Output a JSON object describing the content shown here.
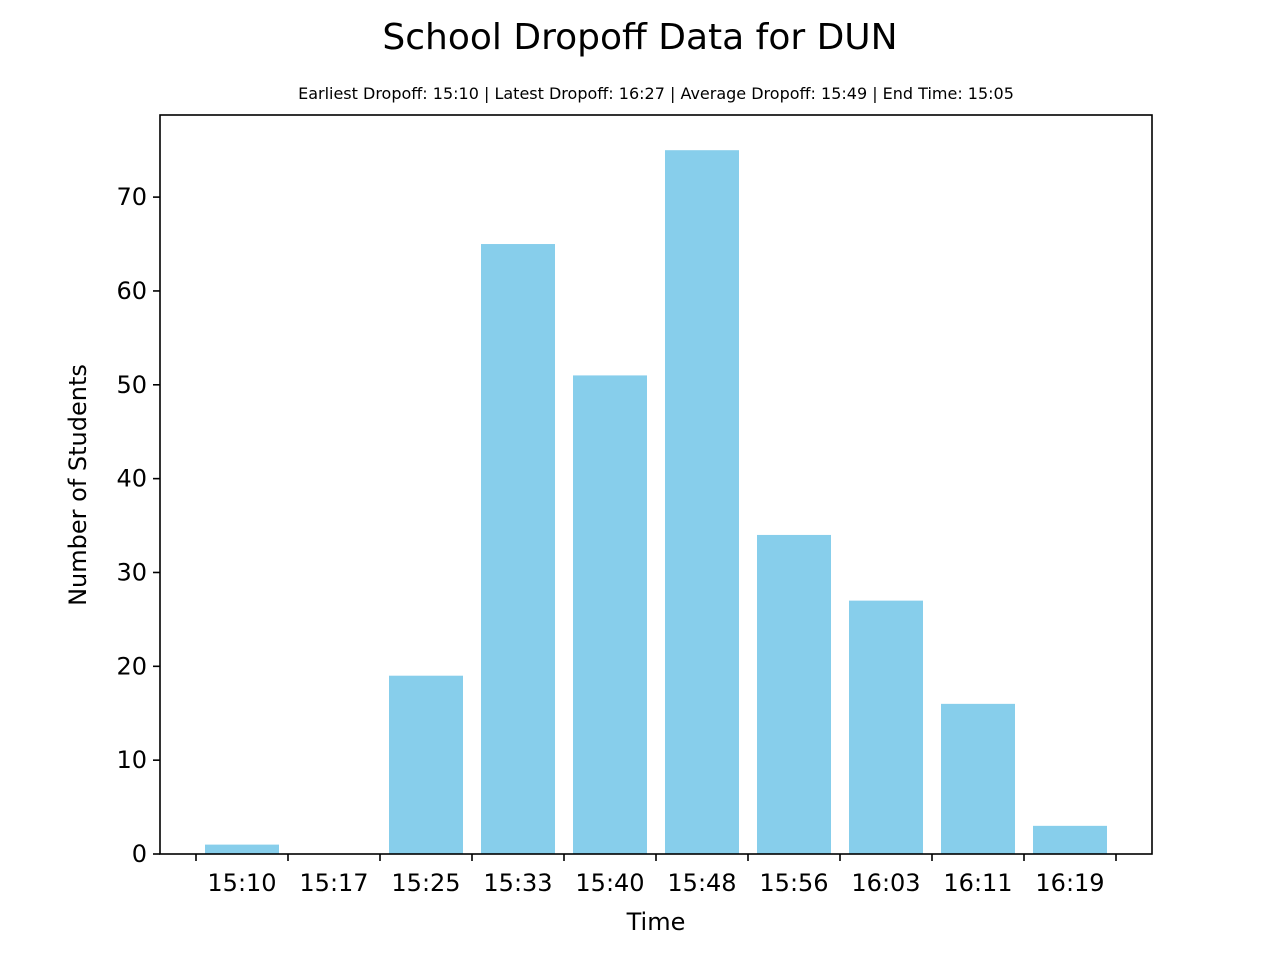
{
  "chart_data": {
    "type": "bar",
    "title": "School Dropoff Data for DUN",
    "subtitle": "Earliest Dropoff: 15:10 | Latest Dropoff: 16:27 | Average Dropoff: 15:49 | End Time: 15:05",
    "xlabel": "Time",
    "ylabel": "Number of Students",
    "categories": [
      "15:10",
      "15:17",
      "15:25",
      "15:33",
      "15:40",
      "15:48",
      "15:56",
      "16:03",
      "16:11",
      "16:19"
    ],
    "values": [
      1,
      0,
      19,
      65,
      51,
      75,
      34,
      27,
      16,
      3
    ],
    "yticks": [
      0,
      10,
      20,
      30,
      40,
      50,
      60,
      70
    ],
    "ylim": [
      0,
      78.75
    ],
    "grid": false,
    "bar_color": "#87ceeb"
  }
}
